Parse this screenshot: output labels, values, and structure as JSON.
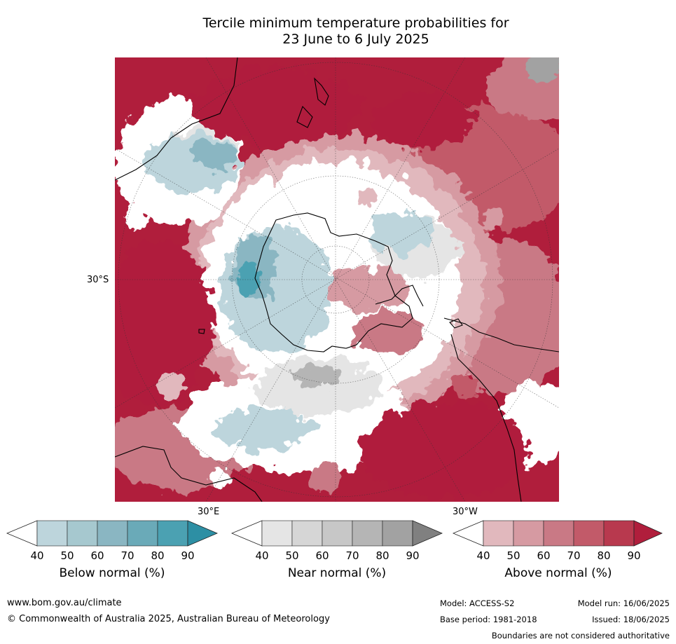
{
  "title": {
    "line1": "Tercile minimum temperature probabilities for",
    "line2": "23 June to 6 July 2025"
  },
  "map": {
    "latitude_label": "30°S",
    "longitude_labels": [
      "30°E",
      "30°W"
    ]
  },
  "legends": [
    {
      "label": "Below normal (%)",
      "ticks": [
        "40",
        "50",
        "60",
        "70",
        "80",
        "90"
      ],
      "colors": [
        "#ffffff",
        "#bdd5dc",
        "#a6c8cf",
        "#8ab6c2",
        "#6aaab8",
        "#4ba1b2",
        "#2d8fa4"
      ]
    },
    {
      "label": "Near normal (%)",
      "ticks": [
        "40",
        "50",
        "60",
        "70",
        "80",
        "90"
      ],
      "colors": [
        "#ffffff",
        "#e5e5e5",
        "#d6d6d6",
        "#c7c7c7",
        "#b5b5b5",
        "#a2a2a2",
        "#808080"
      ]
    },
    {
      "label": "Above normal (%)",
      "ticks": [
        "40",
        "50",
        "60",
        "70",
        "80",
        "90"
      ],
      "colors": [
        "#ffffff",
        "#e1b8bd",
        "#d69aa2",
        "#c97985",
        "#c25a69",
        "#b8394e",
        "#b01e3c"
      ]
    }
  ],
  "footer": {
    "website": "www.bom.gov.au/climate",
    "copyright": "© Commonwealth of Australia 2025, Australian Bureau of Meteorology",
    "model": "Model: ACCESS-S2",
    "base_period": "Base period: 1981-2018",
    "model_run": "Model run: 16/06/2025",
    "issued": "Issued: 18/06/2025",
    "disclaimer": "Boundaries are not considered authoritative"
  }
}
